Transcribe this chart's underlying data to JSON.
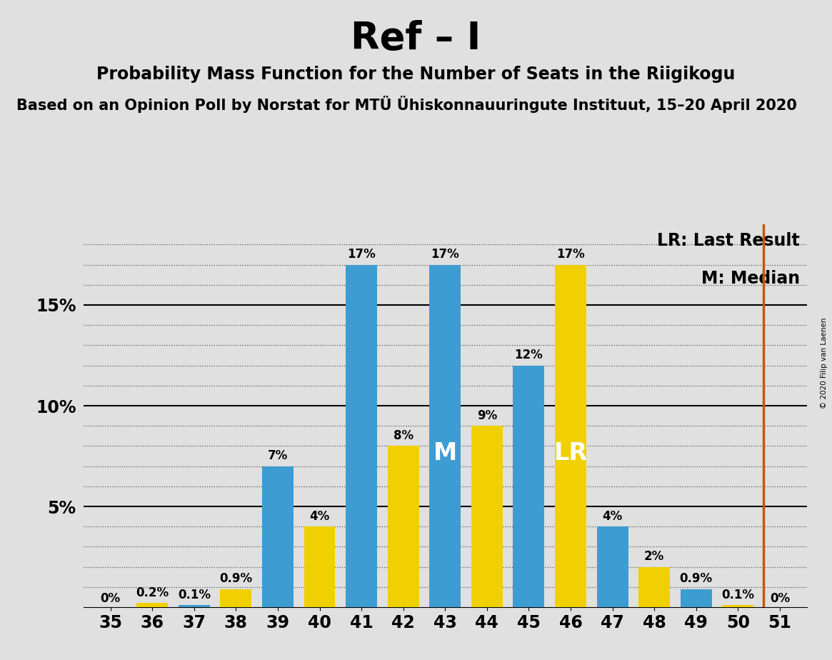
{
  "title": "Ref – I",
  "subtitle1": "Probability Mass Function for the Number of Seats in the Riigikogu",
  "subtitle2": "Based on an Opinion Poll by Norstat for MTÜ Ühiskonnauuringute Instituut, 15–20 April 2020",
  "copyright": "© 2020 Filip van Laenen",
  "seats": [
    35,
    36,
    37,
    38,
    39,
    40,
    41,
    42,
    43,
    44,
    45,
    46,
    47,
    48,
    49,
    50,
    51
  ],
  "blue_values": [
    0.0,
    0.0,
    0.1,
    0.0,
    7.0,
    0.0,
    17.0,
    0.0,
    17.0,
    0.0,
    12.0,
    0.0,
    4.0,
    0.0,
    0.9,
    0.0,
    0.0
  ],
  "yellow_values": [
    0.0,
    0.2,
    0.0,
    0.9,
    0.0,
    4.0,
    0.0,
    8.0,
    0.0,
    9.0,
    0.0,
    17.0,
    0.0,
    2.0,
    0.0,
    0.1,
    0.0
  ],
  "blue_labels": [
    "0%",
    "",
    "0.1%",
    "",
    "7%",
    "",
    "17%",
    "",
    "17%",
    "",
    "12%",
    "",
    "4%",
    "",
    "0.9%",
    "",
    ""
  ],
  "yellow_labels": [
    "",
    "0.2%",
    "",
    "0.9%",
    "",
    "4%",
    "",
    "8%",
    "",
    "9%",
    "",
    "17%",
    "",
    "2%",
    "",
    "0.1%",
    "0%"
  ],
  "blue_color": "#3d9cd2",
  "yellow_color": "#f0d000",
  "median_seat": 43,
  "lr_seat": 46,
  "lr_line_seat": 51,
  "background_color": "#e0e0e0",
  "ylim_max": 19,
  "ytick_positions": [
    5,
    10,
    15
  ],
  "ytick_labels": [
    "5%",
    "10%",
    "15%"
  ],
  "legend_lr": "LR: Last Result",
  "legend_m": "M: Median",
  "lr_line_color": "#cc5500",
  "title_fontsize": 38,
  "subtitle1_fontsize": 17,
  "subtitle2_fontsize": 15,
  "bar_label_fontsize": 12,
  "axis_tick_fontsize": 17,
  "legend_fontsize": 17,
  "annotation_fontsize": 24
}
